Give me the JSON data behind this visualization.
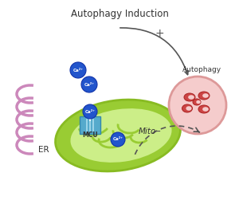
{
  "title": "Autophagy Induction",
  "bg_color": "#ffffff",
  "er_color": "#cc88bb",
  "er_label": "ER",
  "mito_outer_color": "#99cc33",
  "mito_outer_edge": "#88bb22",
  "mito_inner_color": "#ccee88",
  "mito_label": "Mito",
  "mcu_color": "#55aacc",
  "mcu_edge": "#3388aa",
  "mcu_label": "MCU",
  "ca_ball_color": "#2255cc",
  "ca_ball_edge": "#1133aa",
  "ca_label": "Ca²⁺",
  "autophagy_circle_bg": "#f5cccc",
  "autophagy_circle_edge": "#dd9999",
  "autophagy_organelle_color": "#cc4444",
  "autophagy_organelle_edge": "#aa2222",
  "autophagy_label": "Autophagy",
  "plus_sign": "+",
  "minus_sign": "−",
  "arrow_color": "#555555",
  "text_color": "#333333",
  "figsize": [
    3.0,
    2.61
  ],
  "dpi": 100
}
